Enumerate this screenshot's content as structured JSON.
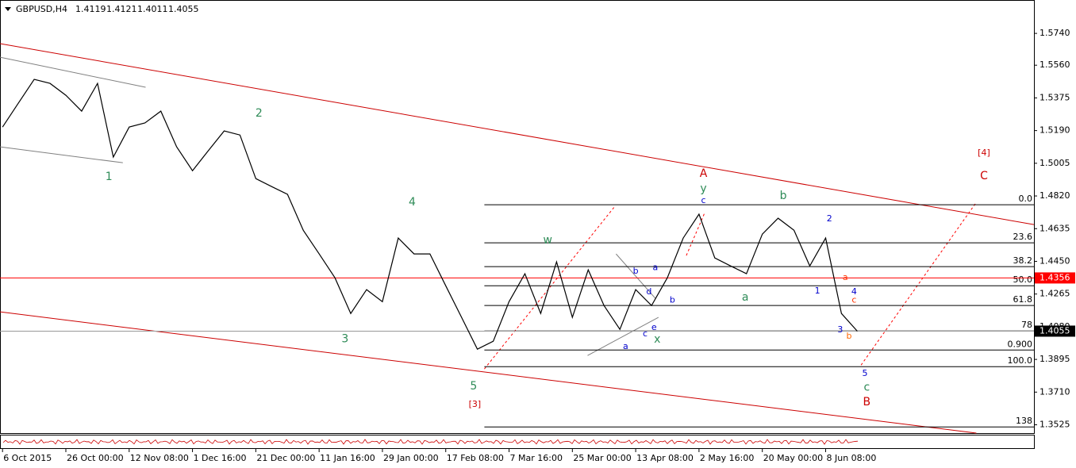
{
  "chart_data": {
    "type": "line",
    "symbol": "GBPUSD,H4",
    "ohlc": [
      1.4119,
      1.4121,
      1.4011,
      1.4055
    ],
    "color": "#000000",
    "x": [
      0,
      0.25,
      0.5,
      0.75,
      1,
      1.25,
      1.5,
      1.75,
      2,
      2.25,
      2.5,
      2.75,
      3,
      3.25,
      3.5,
      3.75,
      4,
      4.25,
      4.5,
      4.75,
      5,
      5.25,
      5.5,
      5.75,
      6,
      6.25,
      6.5,
      6.75,
      7,
      7.25,
      7.5,
      7.75,
      8,
      8.25,
      8.5,
      8.75,
      9,
      9.25,
      9.5,
      9.75,
      10,
      10.25,
      10.5,
      10.75,
      11,
      11.25,
      11.5,
      11.75,
      12,
      12.25,
      12.5,
      12.75,
      13,
      13.25,
      13.5
    ],
    "values": [
      1.521,
      1.5345,
      1.548,
      1.5457,
      1.539,
      1.53,
      1.5457,
      1.504,
      1.521,
      1.5233,
      1.53,
      1.5098,
      1.4963,
      1.5076,
      1.5188,
      1.5165,
      1.4918,
      1.4873,
      1.4829,
      1.4626,
      1.4492,
      1.4357,
      1.4155,
      1.429,
      1.4222,
      1.4582,
      1.4492,
      1.4492,
      1.4312,
      1.4133,
      1.3953,
      1.3998,
      1.4222,
      1.438,
      1.4155,
      1.4447,
      1.4133,
      1.4402,
      1.42,
      1.4065,
      1.429,
      1.42,
      1.4357,
      1.4582,
      1.4717,
      1.4469,
      1.4424,
      1.438,
      1.4604,
      1.4694,
      1.4626,
      1.4424,
      1.4582,
      1.4155,
      1.4055
    ],
    "xlim": [
      -0.04,
      16.29
    ],
    "ylim": [
      1.3478,
      1.592
    ],
    "xticks": [
      {
        "value": 0,
        "label": "6 Oct 2015"
      },
      {
        "value": 1,
        "label": "26 Oct 00:00"
      },
      {
        "value": 2,
        "label": "12 Nov 08:00"
      },
      {
        "value": 3,
        "label": "1 Dec 16:00"
      },
      {
        "value": 4,
        "label": "21 Dec 00:00"
      },
      {
        "value": 5,
        "label": "11 Jan 16:00"
      },
      {
        "value": 6,
        "label": "29 Jan 00:00"
      },
      {
        "value": 7,
        "label": "17 Feb 08:00"
      },
      {
        "value": 8,
        "label": "7 Mar 16:00"
      },
      {
        "value": 9,
        "label": "25 Mar 00:00"
      },
      {
        "value": 10,
        "label": "13 Apr 08:00"
      },
      {
        "value": 11,
        "label": "2 May 16:00"
      },
      {
        "value": 12,
        "label": "20 May 00:00"
      },
      {
        "value": 13,
        "label": "8 Jun 08:00"
      }
    ],
    "yticks": [
      {
        "value": 1.574,
        "label": "1.5740"
      },
      {
        "value": 1.556,
        "label": "1.5560"
      },
      1.5375,
      {
        "value": 1.519,
        "label": "1.5190"
      },
      1.5005,
      {
        "value": 1.482,
        "label": "1.4820"
      },
      1.4635,
      {
        "value": 1.445,
        "label": "1.4450"
      },
      1.4265,
      {
        "value": 1.408,
        "label": "1.4080"
      },
      1.3895,
      {
        "value": 1.371,
        "label": "1.3710"
      },
      1.3525
    ],
    "price_lines": [
      {
        "value": 1.4356,
        "color": "#ff0000"
      },
      {
        "value": 1.4055,
        "color": "#000000"
      }
    ],
    "fib_start": 7.61,
    "fib_levels": [
      {
        "label": "0.0",
        "value": 1.477
      },
      {
        "label": "23.6",
        "value": 1.4555
      },
      {
        "label": "38.2",
        "value": 1.442
      },
      {
        "label": "50.0",
        "value": 1.4312
      },
      {
        "label": "61.8",
        "value": 1.42
      },
      {
        "label": "78",
        "value": 1.4056
      },
      {
        "label": "0.900",
        "value": 1.3948
      },
      {
        "label": "100.0",
        "value": 1.3854
      },
      {
        "label": "138",
        "value": 1.3513
      }
    ],
    "trend_lines": [
      {
        "x": [
          -0.04,
          16.29
        ],
        "y": [
          1.5682,
          1.4658
        ],
        "color": "#cc0000",
        "dash": false
      },
      {
        "x": [
          -0.04,
          15.38
        ],
        "y": [
          1.4164,
          1.3478
        ],
        "color": "#cc0000",
        "dash": false
      },
      {
        "x": [
          -0.04,
          2.26
        ],
        "y": [
          1.5605,
          1.5435
        ],
        "color": "#808080",
        "dash": false
      },
      {
        "x": [
          -0.04,
          1.9
        ],
        "y": [
          1.5098,
          1.5008
        ],
        "color": "#808080",
        "dash": false
      },
      {
        "x": [
          9.24,
          10.36
        ],
        "y": [
          1.3917,
          1.4133
        ],
        "color": "#808080",
        "dash": false
      },
      {
        "x": [
          9.69,
          10.31
        ],
        "y": [
          1.4492,
          1.4241
        ],
        "color": "#808080",
        "dash": false
      },
      {
        "x": [
          7.61,
          9.67
        ],
        "y": [
          1.3841,
          1.4761
        ],
        "color": "#ff0000",
        "dash": true
      },
      {
        "x": [
          10.8,
          11.09
        ],
        "y": [
          1.4483,
          1.4725
        ],
        "color": "#ff0000",
        "dash": true
      },
      {
        "x": [
          13.56,
          15.38
        ],
        "y": [
          1.3863,
          1.4784
        ],
        "color": "#ff0000",
        "dash": true
      }
    ],
    "annotations": [
      {
        "text": "1",
        "x": 1.68,
        "y": 1.4927,
        "color": "#2e8b57",
        "size": "wave"
      },
      {
        "text": "2",
        "x": 4.05,
        "y": 1.5287,
        "color": "#2e8b57",
        "size": "wave"
      },
      {
        "text": "3",
        "x": 5.41,
        "y": 1.4011,
        "color": "#2e8b57",
        "size": "wave"
      },
      {
        "text": "4",
        "x": 6.47,
        "y": 1.4784,
        "color": "#2e8b57",
        "size": "wave"
      },
      {
        "text": "5",
        "x": 7.44,
        "y": 1.3742,
        "color": "#2e8b57",
        "size": "wave"
      },
      {
        "text": "[3]",
        "x": 7.46,
        "y": 1.3639,
        "color": "#cc0000",
        "size": "small"
      },
      {
        "text": "w",
        "x": 8.61,
        "y": 1.4568,
        "color": "#2e8b57",
        "size": "wave"
      },
      {
        "text": "x",
        "x": 10.34,
        "y": 1.4007,
        "color": "#2e8b57",
        "size": "wave"
      },
      {
        "text": "y",
        "x": 11.07,
        "y": 1.486,
        "color": "#2e8b57",
        "size": "wave"
      },
      {
        "text": "A",
        "x": 11.07,
        "y": 1.4945,
        "color": "#cc0000",
        "size": "wave"
      },
      {
        "text": "a",
        "x": 11.73,
        "y": 1.4245,
        "color": "#2e8b57",
        "size": "wave"
      },
      {
        "text": "b",
        "x": 12.33,
        "y": 1.482,
        "color": "#2e8b57",
        "size": "wave"
      },
      {
        "text": "c",
        "x": 13.65,
        "y": 1.3737,
        "color": "#2e8b57",
        "size": "wave"
      },
      {
        "text": "B",
        "x": 13.65,
        "y": 1.3652,
        "color": "#cc0000",
        "size": "wave"
      },
      {
        "text": "[4]",
        "x": 15.5,
        "y": 1.5062,
        "color": "#cc0000",
        "size": "small"
      },
      {
        "text": "C",
        "x": 15.5,
        "y": 1.4932,
        "color": "#cc0000",
        "size": "wave"
      },
      {
        "text": "a",
        "x": 9.84,
        "y": 1.3967,
        "color": "#0000cc",
        "size": "small"
      },
      {
        "text": "b",
        "x": 10.0,
        "y": 1.4393,
        "color": "#0000cc",
        "size": "small"
      },
      {
        "text": "c",
        "x": 10.15,
        "y": 1.4038,
        "color": "#0000cc",
        "size": "small"
      },
      {
        "text": "d",
        "x": 10.21,
        "y": 1.4276,
        "color": "#0000cc",
        "size": "small"
      },
      {
        "text": "e",
        "x": 10.29,
        "y": 1.4074,
        "color": "#0000cc",
        "size": "small"
      },
      {
        "text": "a",
        "x": 10.31,
        "y": 1.4415,
        "color": "#0000cc",
        "size": "small"
      },
      {
        "text": "b",
        "x": 10.58,
        "y": 1.4231,
        "color": "#0000cc",
        "size": "small"
      },
      {
        "text": "c",
        "x": 11.07,
        "y": 1.4793,
        "color": "#0000cc",
        "size": "small"
      },
      {
        "text": "1",
        "x": 12.87,
        "y": 1.4281,
        "color": "#0000cc",
        "size": "small"
      },
      {
        "text": "2",
        "x": 13.06,
        "y": 1.469,
        "color": "#0000cc",
        "size": "small"
      },
      {
        "text": "3",
        "x": 13.23,
        "y": 1.4061,
        "color": "#0000cc",
        "size": "small"
      },
      {
        "text": "4",
        "x": 13.45,
        "y": 1.4276,
        "color": "#0000cc",
        "size": "small"
      },
      {
        "text": "5",
        "x": 13.62,
        "y": 1.3814,
        "color": "#0000cc",
        "size": "small"
      },
      {
        "text": "a",
        "x": 13.31,
        "y": 1.4357,
        "color": "#ff3300",
        "size": "small"
      },
      {
        "text": "c",
        "x": 13.45,
        "y": 1.4231,
        "color": "#ff3300",
        "size": "small"
      },
      {
        "text": "b",
        "x": 13.37,
        "y": 1.4025,
        "color": "#ff6600",
        "size": "small"
      }
    ]
  }
}
